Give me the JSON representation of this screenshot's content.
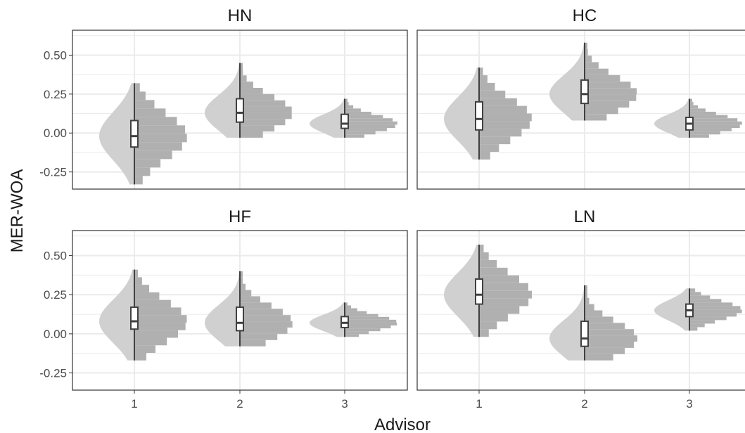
{
  "chart_data": [
    {
      "type": "raincloud",
      "title": "HN",
      "ylabel": "MER-WOA",
      "xlabel": "Advisor",
      "categories": [
        "1",
        "2",
        "3"
      ],
      "ylim": [
        -0.36,
        0.66
      ],
      "yticks": [
        "0.50",
        "0.25",
        "0.00",
        "-0.25"
      ],
      "boxes": [
        {
          "min": -0.33,
          "q1": -0.09,
          "median": -0.02,
          "q3": 0.08,
          "max": 0.32
        },
        {
          "min": -0.03,
          "q1": 0.07,
          "median": 0.13,
          "q3": 0.22,
          "max": 0.45
        },
        {
          "min": -0.03,
          "q1": 0.03,
          "median": 0.06,
          "q3": 0.12,
          "max": 0.22
        }
      ]
    },
    {
      "type": "raincloud",
      "title": "HC",
      "ylabel": "MER-WOA",
      "xlabel": "Advisor",
      "categories": [
        "1",
        "2",
        "3"
      ],
      "ylim": [
        -0.36,
        0.66
      ],
      "yticks": [
        "0.50",
        "0.25",
        "0.00",
        "-0.25"
      ],
      "boxes": [
        {
          "min": -0.17,
          "q1": 0.02,
          "median": 0.09,
          "q3": 0.2,
          "max": 0.42
        },
        {
          "min": 0.08,
          "q1": 0.19,
          "median": 0.25,
          "q3": 0.34,
          "max": 0.58
        },
        {
          "min": -0.03,
          "q1": 0.02,
          "median": 0.06,
          "q3": 0.1,
          "max": 0.22
        }
      ]
    },
    {
      "type": "raincloud",
      "title": "HF",
      "ylabel": "MER-WOA",
      "xlabel": "Advisor",
      "categories": [
        "1",
        "2",
        "3"
      ],
      "ylim": [
        -0.36,
        0.66
      ],
      "yticks": [
        "0.50",
        "0.25",
        "0.00",
        "-0.25"
      ],
      "boxes": [
        {
          "min": -0.17,
          "q1": 0.03,
          "median": 0.08,
          "q3": 0.17,
          "max": 0.41
        },
        {
          "min": -0.08,
          "q1": 0.02,
          "median": 0.07,
          "q3": 0.17,
          "max": 0.4
        },
        {
          "min": -0.02,
          "q1": 0.04,
          "median": 0.07,
          "q3": 0.11,
          "max": 0.2
        }
      ]
    },
    {
      "type": "raincloud",
      "title": "LN",
      "ylabel": "MER-WOA",
      "xlabel": "Advisor",
      "categories": [
        "1",
        "2",
        "3"
      ],
      "ylim": [
        -0.36,
        0.66
      ],
      "yticks": [
        "0.50",
        "0.25",
        "0.00",
        "-0.25"
      ],
      "boxes": [
        {
          "min": -0.02,
          "q1": 0.19,
          "median": 0.25,
          "q3": 0.35,
          "max": 0.57
        },
        {
          "min": -0.17,
          "q1": -0.08,
          "median": -0.03,
          "q3": 0.08,
          "max": 0.31
        },
        {
          "min": 0.02,
          "q1": 0.11,
          "median": 0.15,
          "q3": 0.19,
          "max": 0.29
        }
      ]
    }
  ],
  "colors": {
    "cloud": "#d0d0d0",
    "hist": "#b0b0b1",
    "box_stroke": "#404040",
    "box_fill": "#ffffff",
    "grid": "#ebebeb",
    "panel_border": "#333333",
    "text": "#4d4d4d"
  }
}
